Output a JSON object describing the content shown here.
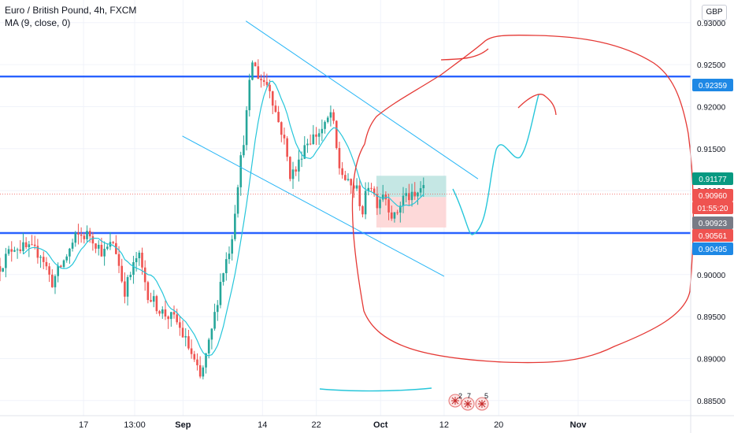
{
  "header": {
    "symbol_line": "Euro / British Pound, 4h, FXCM",
    "indicator_line": "MA (9, close, 0)"
  },
  "currency_button": "GBP",
  "chart_data": {
    "type": "candlestick",
    "symbol": "Euro / British Pound, 4h, FXCM",
    "indicator": "MA (9, close, 0)",
    "ylim": [
      0.8832,
      0.9327
    ],
    "y_ticks": [
      0.885,
      0.89,
      0.895,
      0.9,
      0.905,
      0.91,
      0.915,
      0.92,
      0.925,
      0.93
    ],
    "y_tick_labels": [
      "0.88500",
      "0.89000",
      "0.89500",
      "0.90000",
      "0.90500",
      "0.91000",
      "0.91500",
      "0.92000",
      "0.92500",
      "0.93000"
    ],
    "x_labels": [
      "17",
      "13:00",
      "Sep",
      "14",
      "22",
      "Oct",
      "12",
      "20",
      "Nov"
    ],
    "x_positions": [
      0.121,
      0.195,
      0.265,
      0.38,
      0.458,
      0.551,
      0.643,
      0.722,
      0.837
    ],
    "colors": {
      "up": "#26a69a",
      "down": "#ef5350",
      "horizontal_level": "#2962ff",
      "trend_channel": "#29b6f6",
      "ma": "#26c6da",
      "drawing": "#e53935",
      "target_zone": "#b2dfdb",
      "stop_zone": "#fdd2d2"
    },
    "horizontal_levels": [
      0.92359,
      0.90495
    ],
    "price_labels": [
      {
        "text": "0.92359",
        "value": 0.92359,
        "color": "#1e88e5"
      },
      {
        "text": "0.91177",
        "value": 0.91177,
        "color": "#089981"
      },
      {
        "text": "0.90960",
        "value": 0.9096,
        "color": "#ef5350"
      },
      {
        "text": "01:55:20",
        "value": 0.90915,
        "color": "#ef5350"
      },
      {
        "text": "0.90923",
        "value": 0.90923,
        "color": "#787b86"
      },
      {
        "text": "0.90561",
        "value": 0.90561,
        "color": "#ef5350"
      },
      {
        "text": "0.90495",
        "value": 0.90495,
        "color": "#1e88e5"
      }
    ],
    "position": {
      "entry": 0.90923,
      "target": 0.91177,
      "stop": 0.90561,
      "x_start": 0.545,
      "x_end": 0.646
    },
    "channel_lines": [
      {
        "x": [
          0.356,
          0.692
        ],
        "y": [
          0.9302,
          0.9114
        ]
      },
      {
        "x": [
          0.264,
          0.643
        ],
        "y": [
          0.9165,
          0.8998
        ]
      }
    ],
    "ohlc_waypoints": [
      [
        0.0,
        0.901
      ],
      [
        0.02,
        0.9035
      ],
      [
        0.04,
        0.903
      ],
      [
        0.06,
        0.9025
      ],
      [
        0.075,
        0.899
      ],
      [
        0.095,
        0.902
      ],
      [
        0.11,
        0.9045
      ],
      [
        0.13,
        0.9048
      ],
      [
        0.15,
        0.9025
      ],
      [
        0.165,
        0.904
      ],
      [
        0.18,
        0.898
      ],
      [
        0.2,
        0.9025
      ],
      [
        0.215,
        0.8975
      ],
      [
        0.235,
        0.8955
      ],
      [
        0.255,
        0.8945
      ],
      [
        0.275,
        0.891
      ],
      [
        0.29,
        0.8875
      ],
      [
        0.305,
        0.8925
      ],
      [
        0.32,
        0.8995
      ],
      [
        0.335,
        0.904
      ],
      [
        0.345,
        0.9115
      ],
      [
        0.355,
        0.9175
      ],
      [
        0.365,
        0.9255
      ],
      [
        0.375,
        0.9235
      ],
      [
        0.39,
        0.9225
      ],
      [
        0.4,
        0.919
      ],
      [
        0.41,
        0.9165
      ],
      [
        0.42,
        0.912
      ],
      [
        0.43,
        0.9125
      ],
      [
        0.44,
        0.9155
      ],
      [
        0.455,
        0.9165
      ],
      [
        0.47,
        0.9175
      ],
      [
        0.48,
        0.9195
      ],
      [
        0.49,
        0.913
      ],
      [
        0.505,
        0.9105
      ],
      [
        0.515,
        0.9105
      ],
      [
        0.525,
        0.9075
      ],
      [
        0.535,
        0.9115
      ],
      [
        0.545,
        0.9085
      ],
      [
        0.555,
        0.91
      ],
      [
        0.57,
        0.9065
      ],
      [
        0.585,
        0.9095
      ],
      [
        0.6,
        0.909
      ],
      [
        0.61,
        0.9105
      ],
      [
        0.617,
        0.9096
      ]
    ],
    "ma_period": 9
  }
}
